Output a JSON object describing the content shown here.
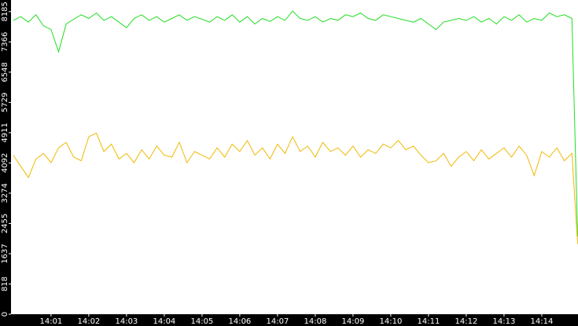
{
  "chart_data": {
    "type": "line",
    "x": [
      0,
      0.2,
      0.4,
      0.6,
      0.8,
      1,
      1.2,
      1.4,
      1.6,
      1.8,
      2,
      2.2,
      2.4,
      2.6,
      2.8,
      3,
      3.2,
      3.4,
      3.6,
      3.8,
      4,
      4.2,
      4.4,
      4.6,
      4.8,
      5,
      5.2,
      5.4,
      5.6,
      5.8,
      6,
      6.2,
      6.4,
      6.6,
      6.8,
      7,
      7.2,
      7.4,
      7.6,
      7.8,
      8,
      8.2,
      8.4,
      8.6,
      8.8,
      9,
      9.2,
      9.4,
      9.6,
      9.8,
      10,
      10.2,
      10.4,
      10.6,
      10.8,
      11,
      11.2,
      11.4,
      11.6,
      11.8,
      12,
      12.2,
      12.4,
      12.6,
      12.8,
      13,
      13.2,
      13.4,
      13.6,
      13.8,
      14,
      14.2,
      14.4,
      14.6,
      14.8,
      14.95
    ],
    "series": [
      {
        "color": "#22dd22",
        "values": [
          7950,
          8050,
          7900,
          8100,
          7800,
          7700,
          7100,
          7850,
          7980,
          8100,
          8000,
          8150,
          7950,
          8050,
          7900,
          7750,
          8000,
          8100,
          7950,
          8050,
          7900,
          8000,
          8100,
          7950,
          8050,
          7980,
          7900,
          8050,
          7950,
          8100,
          7900,
          8050,
          7850,
          8000,
          7920,
          8050,
          7950,
          8200,
          8000,
          7950,
          8050,
          7900,
          8000,
          7950,
          8100,
          8050,
          8150,
          8000,
          7950,
          8100,
          8050,
          8000,
          7950,
          7900,
          8000,
          7850,
          7700,
          7900,
          7950,
          8000,
          7950,
          8050,
          7900,
          8000,
          7850,
          8050,
          7950,
          8100,
          7900,
          8000,
          7950,
          8150,
          8050,
          8100,
          8000,
          2100
        ]
      },
      {
        "color": "#f0b800",
        "values": [
          4300,
          4000,
          3700,
          4200,
          4350,
          4100,
          4500,
          4650,
          4250,
          4150,
          4800,
          4900,
          4400,
          4600,
          4200,
          4350,
          4100,
          4450,
          4200,
          4550,
          4300,
          4250,
          4650,
          4100,
          4400,
          4300,
          4200,
          4500,
          4250,
          4600,
          4400,
          4700,
          4300,
          4500,
          4200,
          4600,
          4350,
          4800,
          4400,
          4550,
          4250,
          4650,
          4400,
          4500,
          4300,
          4550,
          4250,
          4450,
          4350,
          4600,
          4500,
          4700,
          4450,
          4550,
          4300,
          4100,
          4150,
          4350,
          4000,
          4250,
          4400,
          4150,
          4450,
          4200,
          4350,
          4500,
          4250,
          4550,
          4300,
          3750,
          4400,
          4250,
          4500,
          4150,
          4350,
          1900
        ]
      }
    ],
    "xlim": [
      -0.06,
      14.96
    ],
    "xticks": [
      {
        "value": 1,
        "label": "14:01"
      },
      {
        "value": 2,
        "label": "14:02"
      },
      {
        "value": 3,
        "label": "14:03"
      },
      {
        "value": 4,
        "label": "14:04"
      },
      {
        "value": 5,
        "label": "14:05"
      },
      {
        "value": 6,
        "label": "14:06"
      },
      {
        "value": 7,
        "label": "14:07"
      },
      {
        "value": 8,
        "label": "14:08"
      },
      {
        "value": 9,
        "label": "14:09"
      },
      {
        "value": 10,
        "label": "14:10"
      },
      {
        "value": 11,
        "label": "14:11"
      },
      {
        "value": 12,
        "label": "14:12"
      },
      {
        "value": 13,
        "label": "14:13"
      },
      {
        "value": 14,
        "label": "14:14"
      }
    ],
    "ylim": [
      0,
      8500
    ],
    "yticks": [
      0,
      818,
      1637,
      2455,
      3274,
      4092,
      4911,
      5729,
      6548,
      7366,
      8185
    ]
  }
}
